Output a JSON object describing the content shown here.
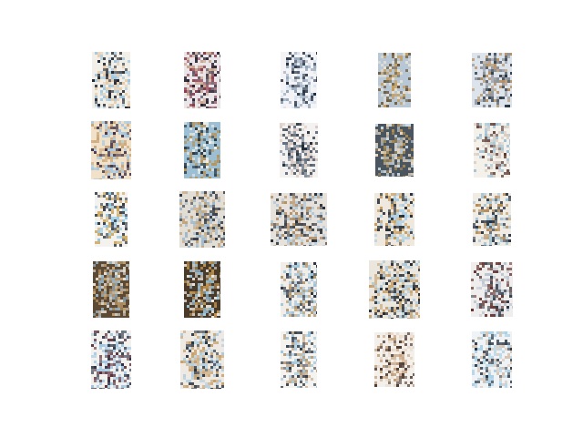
{
  "figure": {
    "background": "#ffffff",
    "grid": {
      "rows": 5,
      "columns": 5
    }
  },
  "tiles": [
    {
      "row": 1,
      "col": 1,
      "palette": [
        "#e7c9a5",
        "#9bc4de",
        "#20242e",
        "#f2efe9"
      ]
    },
    {
      "row": 1,
      "col": 2,
      "palette": [
        "#2a2230",
        "#c7a188",
        "#8a3b4a",
        "#e9e5e9"
      ]
    },
    {
      "row": 1,
      "col": 3,
      "palette": [
        "#1d2a3c",
        "#d9e3ee",
        "#8fa3b8",
        "#f4f4f6"
      ]
    },
    {
      "row": 1,
      "col": 4,
      "palette": [
        "#c79a52",
        "#6a5636",
        "#e7e2d4",
        "#b7c7d6"
      ]
    },
    {
      "row": 1,
      "col": 5,
      "palette": [
        "#26323e",
        "#b58b5b",
        "#8a8e96",
        "#dde3ea"
      ]
    },
    {
      "row": 2,
      "col": 1,
      "palette": [
        "#3a2c44",
        "#c9a476",
        "#9fc6e4",
        "#f1e1c8"
      ]
    },
    {
      "row": 2,
      "col": 2,
      "palette": [
        "#b98f4c",
        "#2b3a44",
        "#f3efe8",
        "#9dbfd4"
      ]
    },
    {
      "row": 2,
      "col": 3,
      "palette": [
        "#5c6b7e",
        "#d8c8c0",
        "#1f2a36",
        "#f4f2f0"
      ]
    },
    {
      "row": 2,
      "col": 4,
      "palette": [
        "#b2904e",
        "#cfdfe9",
        "#e9d8bd",
        "#4b5560"
      ]
    },
    {
      "row": 2,
      "col": 5,
      "palette": [
        "#d6cbc2",
        "#9cc0d4",
        "#5b3b34",
        "#f4f0ea"
      ]
    },
    {
      "row": 3,
      "col": 1,
      "palette": [
        "#8ec6e4",
        "#d0a85c",
        "#2a3440",
        "#f3f2ef"
      ]
    },
    {
      "row": 3,
      "col": 2,
      "palette": [
        "#c1a276",
        "#2c3440",
        "#9bb7cc",
        "#e2ddd5"
      ]
    },
    {
      "row": 3,
      "col": 3,
      "palette": [
        "#b48f63",
        "#2a2f38",
        "#a9c6dc",
        "#e6e1da"
      ]
    },
    {
      "row": 3,
      "col": 4,
      "palette": [
        "#c89a56",
        "#1f2630",
        "#a8cde6",
        "#eee8de"
      ]
    },
    {
      "row": 3,
      "col": 5,
      "palette": [
        "#b38850",
        "#223040",
        "#9fc3d8",
        "#f0ece4"
      ]
    },
    {
      "row": 4,
      "col": 1,
      "palette": [
        "#c9a470",
        "#e8e3d9",
        "#9bbad0",
        "#5d4a34"
      ]
    },
    {
      "row": 4,
      "col": 2,
      "palette": [
        "#c3954f",
        "#9ed0ec",
        "#efece6",
        "#4a3a2a"
      ]
    },
    {
      "row": 4,
      "col": 3,
      "palette": [
        "#2e3642",
        "#b49466",
        "#9cc3da",
        "#f1eee9"
      ]
    },
    {
      "row": 4,
      "col": 4,
      "palette": [
        "#1f262e",
        "#c7a069",
        "#a9c8da",
        "#ece7de"
      ]
    },
    {
      "row": 4,
      "col": 5,
      "palette": [
        "#5d2d2a",
        "#b9c4d0",
        "#2a3440",
        "#f0eeec"
      ]
    },
    {
      "row": 5,
      "col": 1,
      "palette": [
        "#2a3344",
        "#9fc6e2",
        "#5a2e3a",
        "#f3f1ee"
      ]
    },
    {
      "row": 5,
      "col": 2,
      "palette": [
        "#c7a06a",
        "#273140",
        "#a9cae0",
        "#eeeae3"
      ]
    },
    {
      "row": 5,
      "col": 3,
      "palette": [
        "#343c47",
        "#b89a76",
        "#9bc3db",
        "#f5f3f0"
      ]
    },
    {
      "row": 5,
      "col": 4,
      "palette": [
        "#c3a07c",
        "#e8d7c6",
        "#4d3a32",
        "#f3f0ec"
      ]
    },
    {
      "row": 5,
      "col": 5,
      "palette": [
        "#2a3644",
        "#a7cfe4",
        "#d6c2b1",
        "#f0f3f6"
      ]
    }
  ]
}
